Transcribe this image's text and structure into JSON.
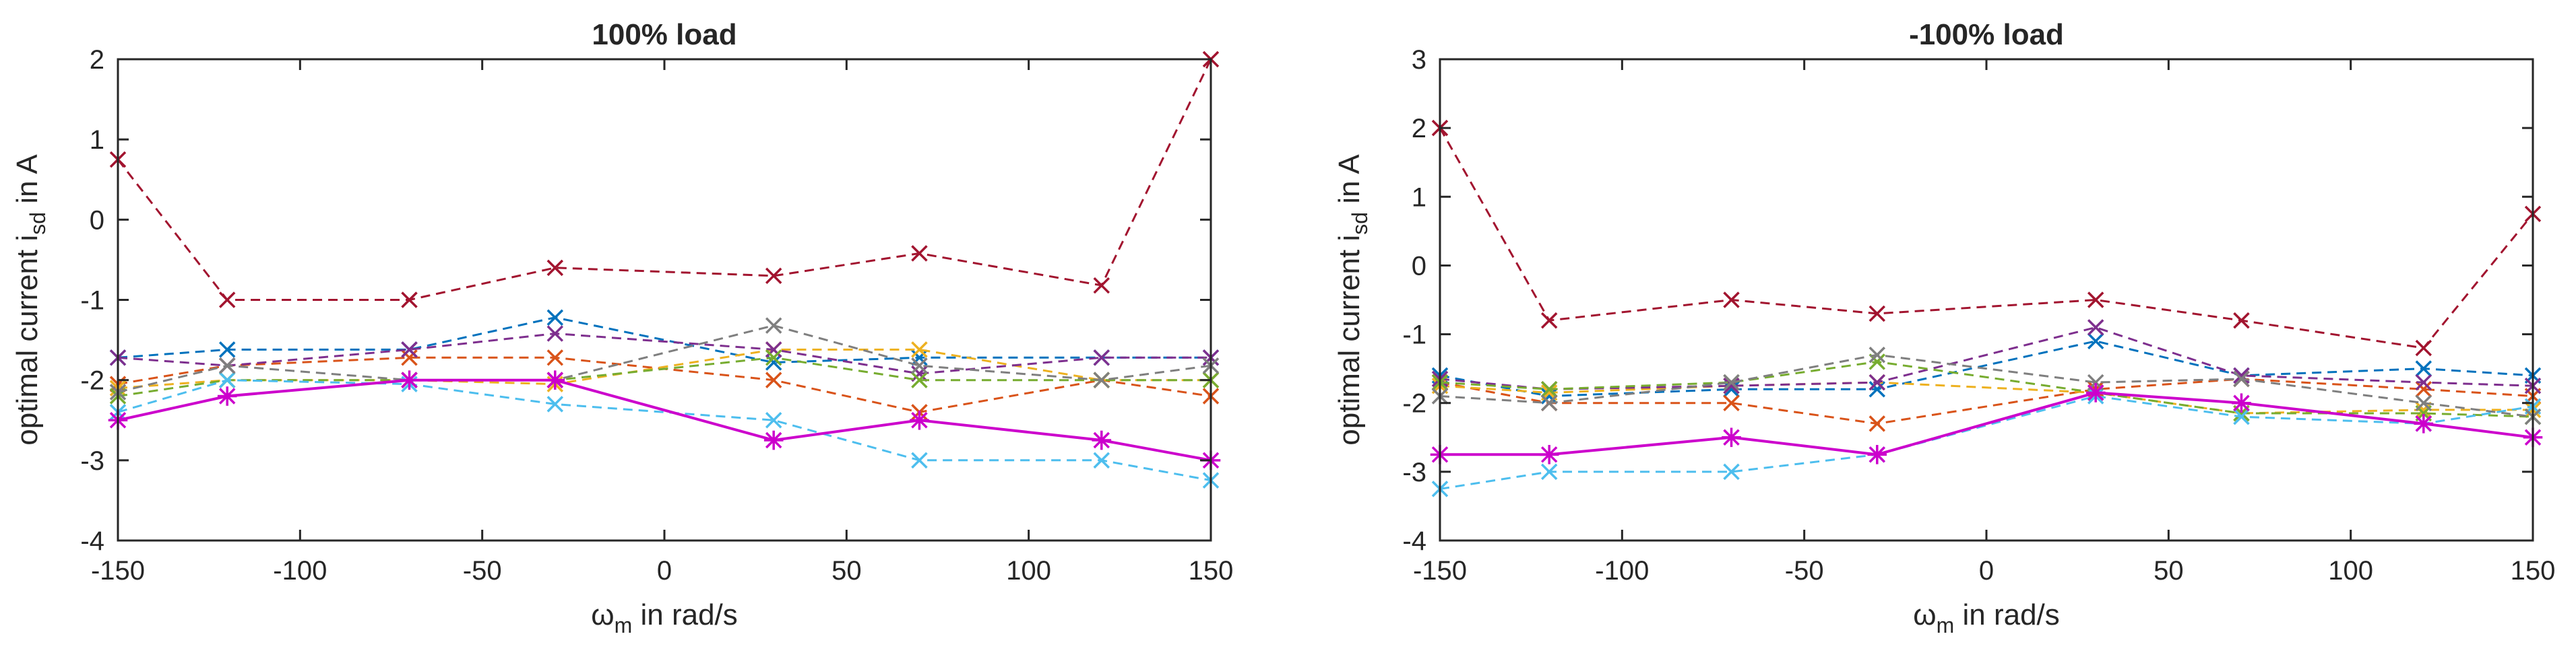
{
  "chart_data": [
    {
      "type": "line",
      "title": "100% load",
      "xlabel": {
        "symbol": "ω",
        "subscript": "m",
        "rest": " in rad/s"
      },
      "ylabel": {
        "main": "optimal current i",
        "subscript": "sd",
        "rest": " in A"
      },
      "xlim": [
        -150,
        150
      ],
      "ylim": [
        -4,
        2
      ],
      "xticks": [
        "-150",
        "-100",
        "-50",
        "0",
        "50",
        "100",
        "150"
      ],
      "yticks": [
        "-4",
        "-3",
        "-2",
        "-1",
        "0",
        "1",
        "2"
      ],
      "grid": false,
      "x": [
        -150,
        -120,
        -70,
        -30,
        30,
        70,
        120,
        150
      ],
      "series": [
        {
          "color": "#0072BD",
          "dash": true,
          "marker": "x",
          "values": [
            -1.72,
            -1.62,
            -1.62,
            -1.22,
            -1.78,
            -1.72,
            -1.72,
            -1.72
          ]
        },
        {
          "color": "#D95319",
          "dash": true,
          "marker": "x",
          "values": [
            -2.05,
            -1.82,
            -1.72,
            -1.72,
            -2.0,
            -2.4,
            -2.0,
            -2.2
          ]
        },
        {
          "color": "#EDB120",
          "dash": true,
          "marker": "x",
          "values": [
            -2.1,
            -2.0,
            -2.0,
            -2.05,
            -1.62,
            -1.62,
            -2.0,
            -2.0
          ]
        },
        {
          "color": "#7E2F8E",
          "dash": true,
          "marker": "x",
          "values": [
            -1.72,
            -1.82,
            -1.62,
            -1.42,
            -1.62,
            -1.92,
            -1.72,
            -1.72
          ]
        },
        {
          "color": "#77AC30",
          "dash": true,
          "marker": "x",
          "values": [
            -2.2,
            -2.0,
            -2.0,
            -2.0,
            -1.72,
            -2.0,
            -2.0,
            -2.0
          ]
        },
        {
          "color": "#4DBEEE",
          "dash": true,
          "marker": "x",
          "values": [
            -2.4,
            -2.0,
            -2.05,
            -2.3,
            -2.5,
            -3.0,
            -3.0,
            -3.25
          ]
        },
        {
          "color": "#A2142F",
          "dash": true,
          "marker": "x",
          "values": [
            0.75,
            -1.0,
            -1.0,
            -0.6,
            -0.7,
            -0.42,
            -0.82,
            2.0
          ]
        },
        {
          "color": "#7F7F7F",
          "dash": true,
          "marker": "x",
          "values": [
            -2.15,
            -1.82,
            -2.0,
            -2.0,
            -1.32,
            -1.82,
            -2.0,
            -1.82
          ]
        },
        {
          "color": "#CC00CC",
          "dash": false,
          "marker": "*",
          "values": [
            -2.5,
            -2.2,
            -2.0,
            -2.0,
            -2.75,
            -2.5,
            -2.75,
            -3.0
          ]
        }
      ]
    },
    {
      "type": "line",
      "title": "-100% load",
      "xlabel": {
        "symbol": "ω",
        "subscript": "m",
        "rest": " in rad/s"
      },
      "ylabel": {
        "main": "optimal current i",
        "subscript": "sd",
        "rest": " in A"
      },
      "xlim": [
        -150,
        150
      ],
      "ylim": [
        -4,
        3
      ],
      "xticks": [
        "-150",
        "-100",
        "-50",
        "0",
        "50",
        "100",
        "150"
      ],
      "yticks": [
        "-4",
        "-3",
        "-2",
        "-1",
        "0",
        "1",
        "2",
        "3"
      ],
      "grid": false,
      "x": [
        -150,
        -120,
        -70,
        -30,
        30,
        70,
        120,
        150
      ],
      "series": [
        {
          "color": "#0072BD",
          "dash": true,
          "marker": "x",
          "values": [
            -1.6,
            -1.9,
            -1.8,
            -1.8,
            -1.1,
            -1.6,
            -1.5,
            -1.6
          ]
        },
        {
          "color": "#D95319",
          "dash": true,
          "marker": "x",
          "values": [
            -1.7,
            -2.0,
            -2.0,
            -2.3,
            -1.8,
            -1.65,
            -1.8,
            -1.9
          ]
        },
        {
          "color": "#EDB120",
          "dash": true,
          "marker": "x",
          "values": [
            -1.75,
            -1.85,
            -1.75,
            -1.7,
            -1.85,
            -2.15,
            -2.1,
            -2.1
          ]
        },
        {
          "color": "#7E2F8E",
          "dash": true,
          "marker": "x",
          "values": [
            -1.65,
            -1.8,
            -1.75,
            -1.7,
            -0.9,
            -1.6,
            -1.7,
            -1.75
          ]
        },
        {
          "color": "#77AC30",
          "dash": true,
          "marker": "x",
          "values": [
            -1.7,
            -1.8,
            -1.7,
            -1.4,
            -1.85,
            -2.15,
            -2.15,
            -2.2
          ]
        },
        {
          "color": "#4DBEEE",
          "dash": true,
          "marker": "x",
          "values": [
            -3.25,
            -3.0,
            -3.0,
            -2.75,
            -1.9,
            -2.2,
            -2.3,
            -2.05
          ]
        },
        {
          "color": "#A2142F",
          "dash": true,
          "marker": "x",
          "values": [
            2.0,
            -0.8,
            -0.5,
            -0.7,
            -0.5,
            -0.8,
            -1.2,
            0.75
          ]
        },
        {
          "color": "#7F7F7F",
          "dash": true,
          "marker": "x",
          "values": [
            -1.9,
            -2.0,
            -1.7,
            -1.3,
            -1.7,
            -1.65,
            -2.0,
            -2.2
          ]
        },
        {
          "color": "#CC00CC",
          "dash": false,
          "marker": "*",
          "values": [
            -2.75,
            -2.75,
            -2.5,
            -2.75,
            -1.85,
            -2.0,
            -2.3,
            -2.5
          ]
        }
      ]
    }
  ]
}
